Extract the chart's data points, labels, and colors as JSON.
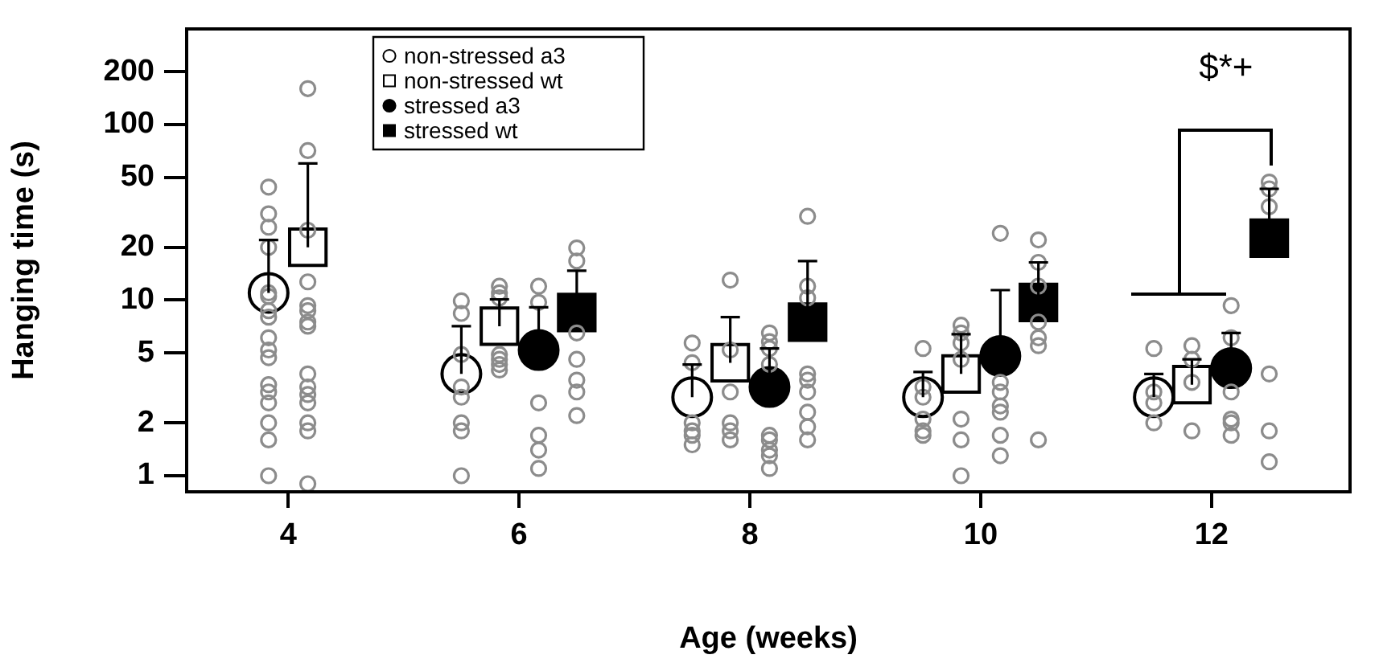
{
  "chart_data": {
    "type": "scatter",
    "xlabel": "Age (weeks)",
    "ylabel": "Hanging time (s)",
    "log": "y",
    "xlim": [
      3.12,
      13.2
    ],
    "xticks": [
      4,
      6,
      8,
      10,
      12
    ],
    "ylim": [
      0.81,
      350
    ],
    "yticks": [
      1,
      2,
      5,
      10,
      20,
      50,
      100,
      200
    ],
    "grid": false,
    "legend": "top left",
    "annotations": [
      "$*+"
    ],
    "series": [
      {
        "color": "#8c8c8c",
        "marker": "circle",
        "x": [
          3.83,
          3.83,
          3.83,
          3.83,
          3.83,
          3.83,
          3.83,
          3.83,
          3.83,
          3.83,
          3.83,
          3.83,
          3.83,
          3.83,
          3.83,
          3.83,
          3.83,
          5.5,
          5.5,
          5.5,
          5.5,
          5.5,
          5.5,
          5.5,
          5.5,
          7.5,
          7.5,
          7.5,
          7.5,
          7.5,
          7.5,
          9.5,
          9.5,
          9.5,
          9.5,
          9.5,
          9.5,
          11.5,
          11.5,
          11.5,
          11.5
        ],
        "values": [
          44,
          31,
          26,
          20,
          11,
          10.5,
          8.7,
          8,
          6.1,
          5.2,
          4.7,
          3.3,
          3,
          2.6,
          2,
          1.6,
          1,
          9.9,
          8.4,
          4.9,
          3.2,
          2.8,
          2,
          1.8,
          1,
          5.7,
          4.4,
          2,
          1.8,
          1.7,
          1.5,
          5.3,
          3.2,
          2.8,
          2.1,
          1.8,
          1.7,
          5.3,
          3,
          2.6,
          2
        ]
      },
      {
        "color": "#8c8c8c",
        "marker": "circle",
        "x": [
          4.17,
          4.17,
          4.17,
          4.17,
          4.17,
          4.17,
          4.17,
          4.17,
          4.17,
          4.17,
          4.17,
          4.17,
          4.17,
          4.17,
          4.17,
          5.83,
          5.83,
          5.83,
          5.83,
          5.83,
          5.83,
          5.83,
          7.83,
          7.83,
          7.83,
          7.83,
          7.83,
          7.83,
          9.83,
          9.83,
          9.83,
          9.83,
          9.83,
          9.83,
          9.83,
          11.83,
          11.83,
          11.83,
          11.83
        ],
        "values": [
          160,
          71,
          25,
          12.7,
          9.3,
          8.7,
          7.5,
          7.1,
          3.8,
          3.2,
          2.9,
          2.6,
          2,
          1.8,
          0.9,
          12,
          11,
          10.3,
          4.9,
          4.6,
          4.3,
          4,
          13,
          5.2,
          3,
          2,
          1.8,
          1.6,
          7.2,
          6.5,
          5.7,
          4.6,
          2.1,
          1.6,
          1,
          5.5,
          4.6,
          3.4,
          1.8
        ]
      },
      {
        "color": "#8c8c8c",
        "marker": "circle",
        "x": [
          6.17,
          6.17,
          6.17,
          6.17,
          6.17,
          6.17,
          8.17,
          8.17,
          8.17,
          8.17,
          8.17,
          8.17,
          8.17,
          8.17,
          8.17,
          10.17,
          10.17,
          10.17,
          10.17,
          10.17,
          10.17,
          10.17,
          12.17,
          12.17,
          12.17,
          12.17,
          12.17,
          12.17
        ],
        "values": [
          12,
          9.7,
          2.6,
          1.7,
          1.4,
          1.1,
          6.5,
          5.8,
          5.3,
          4.3,
          1.7,
          1.6,
          1.4,
          1.3,
          1.1,
          24,
          3.4,
          3,
          2.5,
          2.3,
          1.7,
          1.3,
          9.3,
          6.1,
          3,
          2.1,
          2,
          1.7
        ]
      },
      {
        "color": "#8c8c8c",
        "marker": "circle",
        "x": [
          6.5,
          6.5,
          6.5,
          6.5,
          6.5,
          6.5,
          6.5,
          8.5,
          8.5,
          8.5,
          8.5,
          8.5,
          8.5,
          8.5,
          8.5,
          8.5,
          10.5,
          10.5,
          10.5,
          10.5,
          10.5,
          10.5,
          10.5,
          12.5,
          12.5,
          12.5,
          12.5,
          12.5,
          12.5
        ],
        "values": [
          19.8,
          16.7,
          6.5,
          4.6,
          3.5,
          3,
          2.2,
          30,
          12,
          10.3,
          3.8,
          3.5,
          3,
          2.3,
          1.9,
          1.6,
          22,
          16.4,
          12,
          7.5,
          6.1,
          5.5,
          1.6,
          47,
          43,
          34,
          3.8,
          1.8,
          1.2
        ]
      },
      {
        "name": "non-stressed a3",
        "color": "#ffffff",
        "marker": "circle",
        "x": [
          3.83,
          5.5,
          7.5,
          9.5,
          11.5
        ],
        "values": [
          11,
          3.8,
          2.8,
          2.8,
          2.8
        ],
        "errors": [
          [
            11,
            22
          ],
          [
            3.8,
            7.1
          ],
          [
            2.8,
            4.3
          ],
          [
            2.8,
            3.9
          ],
          [
            2.8,
            3.8
          ]
        ]
      },
      {
        "name": "non-stressed wt",
        "color": "#ffffff",
        "marker": "square",
        "x": [
          4.17,
          5.83,
          7.83,
          9.83,
          11.83
        ],
        "values": [
          20,
          7.1,
          4.4,
          3.8,
          3.3
        ],
        "errors": [
          [
            20,
            60
          ],
          [
            7.1,
            10.1
          ],
          [
            4.4,
            8
          ],
          [
            3.8,
            6.4
          ],
          [
            3.3,
            4.6
          ]
        ]
      },
      {
        "name": "stressed a3",
        "color": "#000000",
        "marker": "circle",
        "x": [
          6.17,
          8.17,
          10.17,
          12.17
        ],
        "values": [
          5.2,
          3.2,
          4.8,
          4.1
        ],
        "errors": [
          [
            5.2,
            9.1
          ],
          [
            3.2,
            5.3
          ],
          [
            4.8,
            11.4
          ],
          [
            4.1,
            6.5
          ]
        ]
      },
      {
        "name": "stressed wt",
        "color": "#000000",
        "marker": "square",
        "x": [
          6.5,
          8.5,
          10.5,
          12.5
        ],
        "values": [
          8.5,
          7.5,
          9.7,
          22.5
        ],
        "errors": [
          [
            8.5,
            14.7
          ],
          [
            7.5,
            16.7
          ],
          [
            9.7,
            16.4
          ],
          [
            22.5,
            43
          ]
        ]
      }
    ]
  }
}
